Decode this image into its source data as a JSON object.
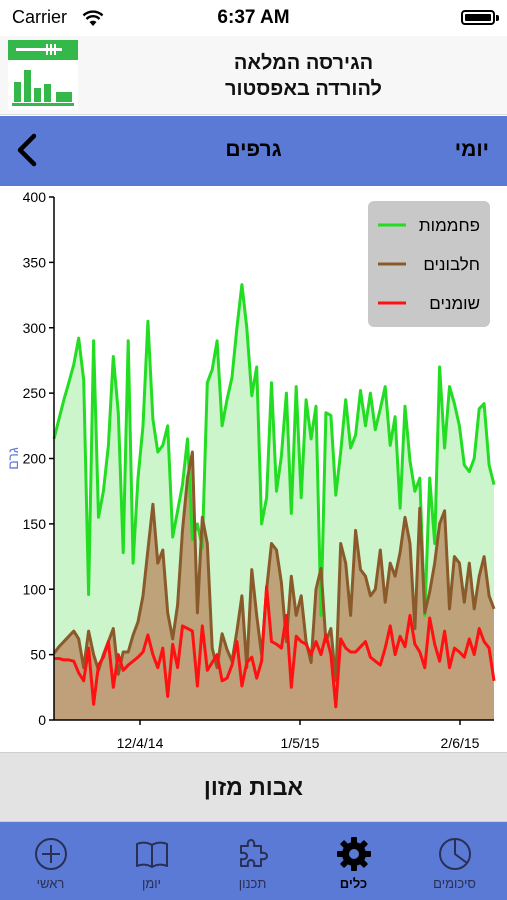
{
  "status_bar": {
    "carrier": "Carrier",
    "time": "6:37 AM"
  },
  "promo": {
    "line1": "הגירסה המלאה",
    "line2": "להורדה באפסטור"
  },
  "nav": {
    "title": "גרפים",
    "right_label": "יומי",
    "back_icon": "chevron-left-icon"
  },
  "food_button": {
    "label": "אבות מזון"
  },
  "tabs": [
    {
      "label": "ראשי",
      "icon": "plus-circle-icon"
    },
    {
      "label": "יומן",
      "icon": "book-icon"
    },
    {
      "label": "תכנון",
      "icon": "puzzle-icon"
    },
    {
      "label": "כלים",
      "icon": "gear-icon",
      "active": true
    },
    {
      "label": "סיכומים",
      "icon": "pie-chart-icon"
    }
  ],
  "colors": {
    "nav_bg": "#5a7ad6",
    "carbs": "#22dd22",
    "protein": "#8b5a2b",
    "fat": "#ff1111"
  },
  "chart_data": {
    "type": "area",
    "ylabel": "גרם",
    "ylim": [
      0,
      400
    ],
    "yticks": [
      0,
      50,
      100,
      150,
      200,
      250,
      300,
      350,
      400
    ],
    "xtick_labels": [
      "12/4/14",
      "1/5/15",
      "2/6/15"
    ],
    "legend_position": "top-right",
    "series": [
      {
        "name": "פחממות",
        "color": "#22dd22",
        "fill": "#ccf5cc",
        "values": [
          215,
          230,
          245,
          258,
          272,
          292,
          260,
          96,
          290,
          155,
          175,
          210,
          278,
          235,
          128,
          290,
          120,
          185,
          225,
          305,
          230,
          205,
          210,
          225,
          140,
          160,
          180,
          215,
          138,
          150,
          132,
          258,
          268,
          290,
          225,
          245,
          262,
          300,
          333,
          300,
          248,
          270,
          150,
          170,
          258,
          175,
          202,
          250,
          158,
          255,
          170,
          245,
          215,
          240,
          80,
          235,
          233,
          172,
          205,
          245,
          208,
          218,
          252,
          225,
          250,
          222,
          238,
          255,
          210,
          232,
          162,
          240,
          198,
          175,
          185,
          80,
          185,
          135,
          270,
          208,
          255,
          242,
          225,
          195,
          190,
          200,
          238,
          242,
          195,
          180
        ]
      },
      {
        "name": "חלבונים",
        "color": "#8b5a2b",
        "fill": "#bda27a",
        "values": [
          51,
          56,
          60,
          64,
          68,
          62,
          40,
          68,
          50,
          38,
          50,
          60,
          70,
          35,
          52,
          52,
          65,
          75,
          95,
          130,
          165,
          120,
          130,
          82,
          62,
          88,
          145,
          185,
          205,
          82,
          155,
          135,
          55,
          40,
          66,
          54,
          45,
          68,
          95,
          40,
          115,
          80,
          50,
          100,
          135,
          130,
          105,
          60,
          110,
          80,
          95,
          60,
          44,
          100,
          116,
          60,
          70,
          30,
          135,
          120,
          80,
          145,
          115,
          110,
          95,
          100,
          130,
          90,
          120,
          110,
          128,
          155,
          135,
          70,
          162,
          82,
          98,
          120,
          150,
          160,
          85,
          125,
          120,
          90,
          120,
          85,
          110,
          125,
          95,
          85
        ]
      },
      {
        "name": "שומנים",
        "color": "#ff1111",
        "fill": "#c0a07a",
        "values": [
          47,
          47,
          46,
          46,
          45,
          36,
          30,
          55,
          12,
          42,
          48,
          60,
          25,
          50,
          38,
          42,
          45,
          48,
          52,
          65,
          50,
          40,
          55,
          18,
          58,
          40,
          72,
          70,
          68,
          26,
          72,
          38,
          44,
          50,
          30,
          32,
          42,
          60,
          26,
          44,
          48,
          32,
          45,
          102,
          60,
          58,
          55,
          80,
          25,
          64,
          60,
          58,
          50,
          60,
          50,
          65,
          50,
          10,
          62,
          55,
          52,
          52,
          56,
          60,
          48,
          45,
          42,
          55,
          72,
          50,
          64,
          56,
          80,
          58,
          52,
          40,
          78,
          58,
          45,
          68,
          40,
          55,
          52,
          48,
          62,
          50,
          70,
          60,
          55,
          30
        ]
      }
    ]
  }
}
